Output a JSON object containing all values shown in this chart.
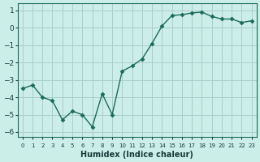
{
  "x": [
    0,
    1,
    2,
    3,
    4,
    5,
    6,
    7,
    8,
    9,
    10,
    11,
    12,
    13,
    14,
    15,
    16,
    17,
    18,
    19,
    20,
    21,
    22,
    23
  ],
  "y": [
    -3.5,
    -3.3,
    -4.0,
    -4.2,
    -5.3,
    -4.8,
    -5.0,
    -5.7,
    -3.8,
    -5.0,
    -2.5,
    -2.2,
    -1.8,
    -0.9,
    0.1,
    0.7,
    0.75,
    0.85,
    0.9,
    0.65,
    0.5,
    0.5,
    0.3,
    0.4
  ],
  "xlabel": "Humidex (Indice chaleur)",
  "ylabel": "",
  "title": "",
  "line_color": "#1a6b5a",
  "marker_color": "#1a6b5a",
  "bg_color": "#cceee8",
  "grid_color": "#aacccc",
  "yticks": [
    -6,
    -5,
    -4,
    -3,
    -2,
    -1,
    0,
    1
  ],
  "xtick_labels": [
    "0",
    "1",
    "2",
    "3",
    "4",
    "5",
    "6",
    "7",
    "8",
    "9",
    "10",
    "11",
    "12",
    "13",
    "14",
    "15",
    "16",
    "17",
    "18",
    "19",
    "20",
    "21",
    "22",
    "23"
  ],
  "ylim": [
    -6.3,
    1.4
  ],
  "xlim": [
    -0.5,
    23.5
  ]
}
